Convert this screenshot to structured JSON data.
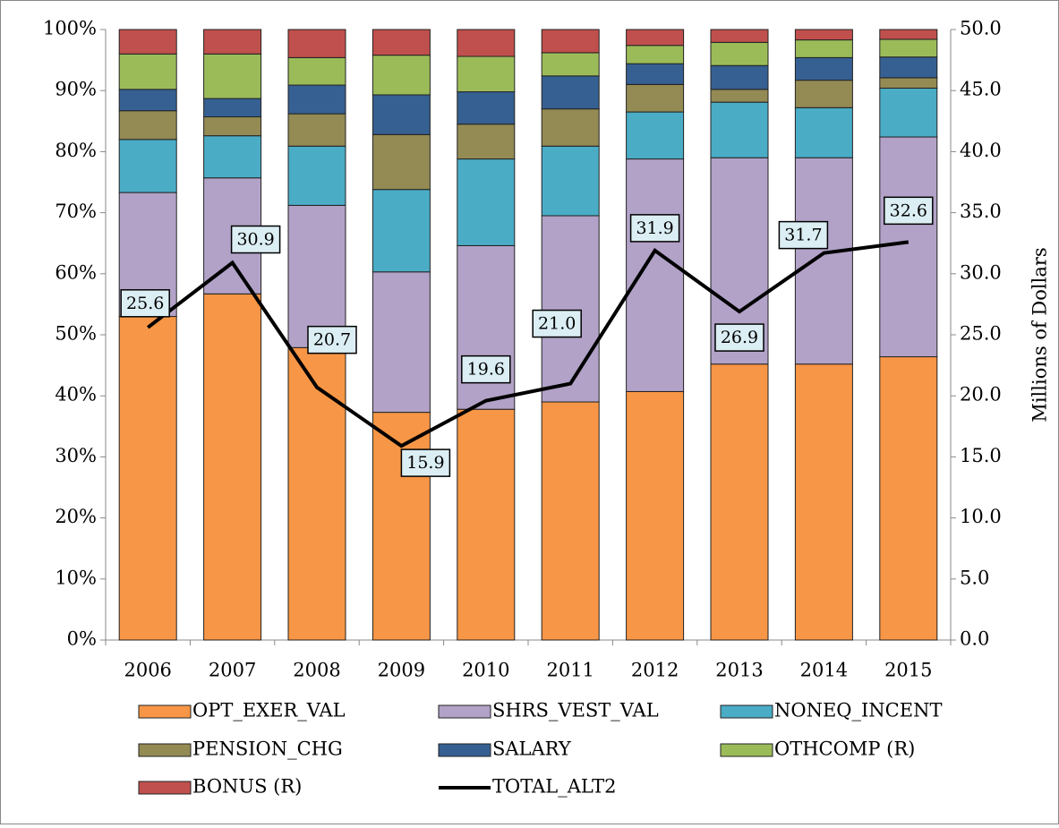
{
  "chart_data": {
    "type": "bar",
    "stacked": true,
    "categories": [
      "2006",
      "2007",
      "2008",
      "2009",
      "2010",
      "2011",
      "2012",
      "2013",
      "2014",
      "2015"
    ],
    "series": [
      {
        "name": "OPT_EXER_VAL",
        "color": "#f79646",
        "values": [
          53,
          56.7,
          47.9,
          37.3,
          37.8,
          39,
          40.7,
          45.2,
          45.2,
          46.4
        ]
      },
      {
        "name": "SHRS_VEST_VAL",
        "color": "#b2a2c7",
        "values": [
          20.3,
          19,
          23.3,
          23,
          26.8,
          30.5,
          38.1,
          33.8,
          33.8,
          36
        ]
      },
      {
        "name": "NONEQ_INCENT",
        "color": "#4bacc6",
        "values": [
          8.7,
          6.9,
          9.7,
          13.5,
          14.2,
          11.4,
          7.7,
          9.1,
          8.2,
          8
        ]
      },
      {
        "name": "PENSION_CHG",
        "color": "#948a54",
        "values": [
          4.7,
          3.1,
          5.3,
          9,
          5.7,
          6.1,
          4.5,
          2.1,
          4.5,
          1.7
        ]
      },
      {
        "name": "SALARY",
        "color": "#366092",
        "values": [
          3.5,
          3,
          4.7,
          6.5,
          5.3,
          5.4,
          3.4,
          3.9,
          3.7,
          3.4
        ]
      },
      {
        "name": "OTHCOMP (R)",
        "color": "#9bbb59",
        "values": [
          5.8,
          7.3,
          4.5,
          6.5,
          5.8,
          3.8,
          3,
          3.8,
          2.9,
          2.9
        ]
      },
      {
        "name": "BONUS (R)",
        "color": "#c0504d",
        "values": [
          4,
          4,
          4.6,
          4.2,
          4.4,
          3.8,
          2.6,
          2.1,
          1.7,
          1.6
        ]
      },
      {
        "name": "TOTAL_ALT2",
        "color": "#000000",
        "type": "line",
        "axis": "y2",
        "values": [
          25.6,
          30.9,
          20.7,
          15.9,
          19.6,
          21,
          31.9,
          26.9,
          31.7,
          32.6
        ],
        "value_labels": [
          "25.6",
          "30.9",
          "20.7",
          "15.9",
          "19.6",
          "21.0",
          "31.9",
          "26.9",
          "31.7",
          "32.6"
        ]
      }
    ],
    "ylim": [
      0,
      100
    ],
    "yticks": [
      {
        "value": 0,
        "label": "0%"
      },
      {
        "value": 10,
        "label": "10%"
      },
      {
        "value": 20,
        "label": "20%"
      },
      {
        "value": 30,
        "label": "30%"
      },
      {
        "value": 40,
        "label": "40%"
      },
      {
        "value": 50,
        "label": "50%"
      },
      {
        "value": 60,
        "label": "60%"
      },
      {
        "value": 70,
        "label": "70%"
      },
      {
        "value": 80,
        "label": "80%"
      },
      {
        "value": 90,
        "label": "90%"
      },
      {
        "value": 100,
        "label": "100%"
      }
    ],
    "y2lim": [
      0,
      50
    ],
    "y2ticks": [
      {
        "value": 0,
        "label": "0.0"
      },
      {
        "value": 5,
        "label": "5.0"
      },
      {
        "value": 10,
        "label": "10.0"
      },
      {
        "value": 15,
        "label": "15.0"
      },
      {
        "value": 20,
        "label": "20.0"
      },
      {
        "value": 25,
        "label": "25.0"
      },
      {
        "value": 30,
        "label": "30.0"
      },
      {
        "value": 35,
        "label": "35.0"
      },
      {
        "value": 40,
        "label": "40.0"
      },
      {
        "value": 45,
        "label": "45.0"
      },
      {
        "value": 50,
        "label": "50.0"
      }
    ],
    "y2label": "Millions of Dollars",
    "legend": "bottom"
  }
}
